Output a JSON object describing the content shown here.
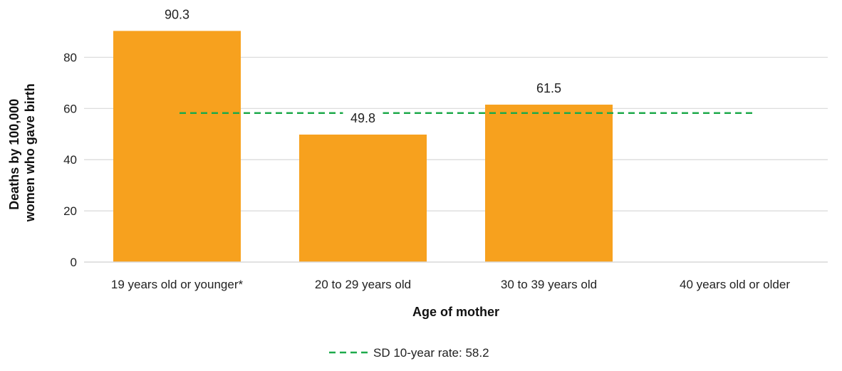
{
  "chart_data": {
    "type": "bar",
    "categories": [
      "19 years old or younger*",
      "20 to 29 years old",
      "30 to 39 years old",
      "40 years old or older"
    ],
    "series": [
      {
        "values": [
          90.3,
          49.8,
          61.5,
          null
        ],
        "color": "#F7A11E"
      }
    ],
    "data_labels": [
      "90.3",
      "49.8",
      "61.5",
      ""
    ],
    "reference_line": {
      "label": "SD 10-year rate: 58.2",
      "value": 58.2,
      "color": "#1EAA4B",
      "style": "dashed"
    },
    "xlabel": "Age of mother",
    "ylabel_lines": [
      "Deaths by 100,000",
      "women who gave birth"
    ],
    "ylim": [
      0,
      90
    ],
    "yticks": [
      0,
      20,
      40,
      60,
      80
    ],
    "grid": true,
    "legend_position": "bottom-center"
  }
}
